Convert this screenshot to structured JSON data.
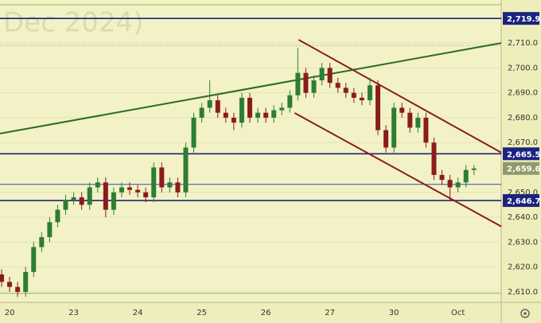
{
  "chart_data": {
    "type": "candlestick",
    "watermark": "Dec 2024)",
    "categories": [
      null,
      "20",
      null,
      null,
      null,
      null,
      null,
      null,
      null,
      "23",
      null,
      null,
      null,
      null,
      null,
      null,
      null,
      "24",
      null,
      null,
      null,
      null,
      null,
      null,
      null,
      "25",
      null,
      null,
      null,
      null,
      null,
      null,
      null,
      "26",
      null,
      null,
      null,
      null,
      null,
      null,
      null,
      "27",
      null,
      null,
      null,
      null,
      null,
      null,
      null,
      "30",
      null,
      null,
      null,
      null,
      null,
      null,
      null,
      "Oct",
      null,
      null
    ],
    "open": [
      2617,
      2614,
      2612,
      2610,
      2618,
      2628,
      2632,
      2638,
      2643,
      2647,
      2648,
      2645,
      2652,
      2654,
      2643,
      2650,
      2652,
      2651,
      2650,
      2648,
      2660,
      2652,
      2654,
      2650,
      2668,
      2680,
      2684,
      2687,
      2682,
      2680,
      2678,
      2688,
      2680,
      2682,
      2680,
      2683,
      2684,
      2689,
      2698,
      2690,
      2695,
      2700,
      2694,
      2692,
      2690,
      2688,
      2687,
      2693,
      2675,
      2668,
      2684,
      2682,
      2676,
      2680,
      2670,
      2657,
      2655,
      2652,
      2654,
      2659
    ],
    "high": [
      2619,
      2616,
      2614,
      2620,
      2630,
      2634,
      2640,
      2645,
      2649,
      2650,
      2650,
      2654,
      2656,
      2656,
      2652,
      2654,
      2654,
      2653,
      2652,
      2662,
      2662,
      2656,
      2656,
      2670,
      2682,
      2686,
      2695,
      2689,
      2684,
      2682,
      2690,
      2690,
      2684,
      2684,
      2685,
      2686,
      2691,
      2708,
      2700,
      2697,
      2702,
      2702,
      2696,
      2694,
      2692,
      2690,
      2696,
      2695,
      2677,
      2686,
      2686,
      2684,
      2682,
      2682,
      2672,
      2659,
      2657,
      2656,
      2661,
      2661
    ],
    "low": [
      2612,
      2610,
      2608,
      2608,
      2616,
      2626,
      2630,
      2636,
      2641,
      2645,
      2643,
      2643,
      2650,
      2640,
      2641,
      2648,
      2649,
      2648,
      2646,
      2646,
      2650,
      2650,
      2648,
      2648,
      2666,
      2678,
      2682,
      2680,
      2678,
      2675,
      2676,
      2678,
      2678,
      2678,
      2678,
      2681,
      2682,
      2687,
      2688,
      2688,
      2693,
      2692,
      2690,
      2688,
      2686,
      2685,
      2685,
      2673,
      2666,
      2666,
      2680,
      2674,
      2674,
      2668,
      2655,
      2653,
      2647,
      2650,
      2652,
      2657
    ],
    "close": [
      2614,
      2612,
      2610,
      2618,
      2628,
      2632,
      2638,
      2643,
      2647,
      2648,
      2645,
      2652,
      2654,
      2643,
      2650,
      2652,
      2651,
      2650,
      2648,
      2660,
      2652,
      2654,
      2650,
      2668,
      2680,
      2684,
      2687,
      2682,
      2680,
      2678,
      2688,
      2680,
      2682,
      2680,
      2683,
      2684,
      2689,
      2698,
      2690,
      2695,
      2700,
      2694,
      2692,
      2690,
      2688,
      2687,
      2693,
      2675,
      2668,
      2684,
      2682,
      2676,
      2680,
      2670,
      2657,
      2655,
      2652,
      2654,
      2659,
      2659.6
    ],
    "up_color": "#2e7d32",
    "down_color": "#8b1c1c",
    "xlim": [
      -0.2,
      62.4
    ],
    "ylim": [
      2605.8,
      2727.3
    ],
    "yticks": [
      {
        "value": 2610,
        "label": "2,610.0"
      },
      {
        "value": 2620,
        "label": "2,620.0"
      },
      {
        "value": 2630,
        "label": "2,630.0"
      },
      {
        "value": 2640,
        "label": "2,640.0"
      },
      {
        "value": 2650,
        "label": "2,650.0"
      },
      {
        "value": 2670,
        "label": "2,670.0"
      },
      {
        "value": 2680,
        "label": "2,680.0"
      },
      {
        "value": 2690,
        "label": "2,690.0"
      },
      {
        "value": 2700,
        "label": "2,700.0"
      },
      {
        "value": 2710,
        "label": "2,710.0"
      }
    ],
    "levels": [
      {
        "value": 2719.9,
        "label": "2,719.9",
        "color": "#1a237e"
      },
      {
        "value": 2665.5,
        "label": "2,665.5",
        "color": "#1a237e"
      },
      {
        "value": 2646.7,
        "label": "2,646.7",
        "color": "#1a237e"
      },
      {
        "value": 2653.2,
        "color": "#3949ab"
      },
      {
        "value": 2709,
        "color": "#999999",
        "style": "dotted"
      },
      {
        "value": 2725.4,
        "color": "#8bc34a"
      },
      {
        "value": 2609.4,
        "color": "#8bc34a"
      }
    ],
    "last": {
      "value": 2659.6,
      "label": "2,659.6",
      "color": "#8f9a6a"
    },
    "trendlines": [
      {
        "x": [
          -0.2,
          62.4
        ],
        "y": [
          2673.6,
          2710
        ],
        "color": "#2e6b1f"
      },
      {
        "x": [
          37.1,
          62.4
        ],
        "y": [
          2711.3,
          2666
        ],
        "color": "#8b1c1c"
      },
      {
        "x": [
          36.6,
          62.4
        ],
        "y": [
          2681.9,
          2636.3
        ],
        "color": "#8b1c1c"
      }
    ]
  }
}
